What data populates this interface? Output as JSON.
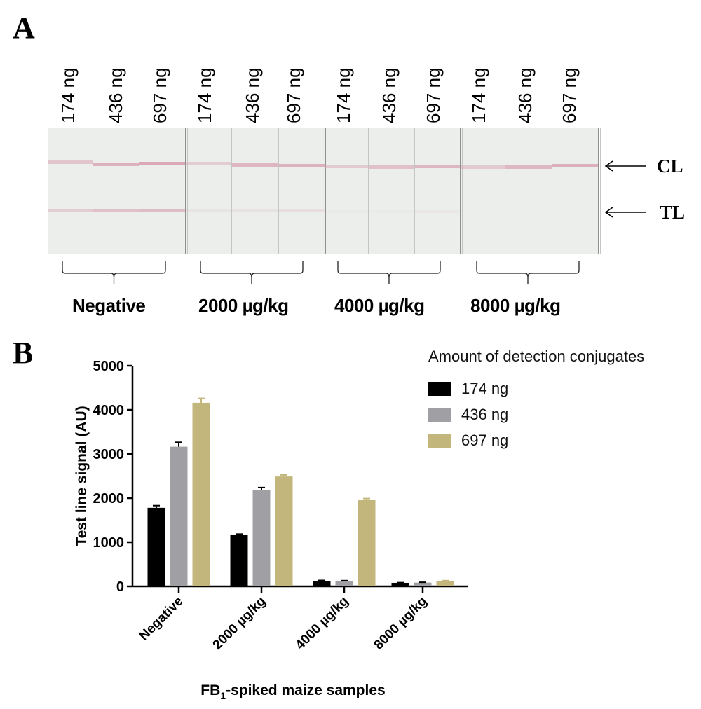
{
  "panel_a": {
    "letter": "A",
    "lane_labels": [
      "174 ng",
      "436 ng",
      "697 ng",
      "174 ng",
      "436 ng",
      "697 ng",
      "174 ng",
      "436 ng",
      "697 ng",
      "174 ng",
      "436 ng",
      "697 ng"
    ],
    "control_line_label": "CL",
    "test_line_label": "TL",
    "group_labels": [
      "Negative",
      "2000 µg/kg",
      "4000 µg/kg",
      "8000 µg/kg"
    ],
    "colors": {
      "strip_background": "#eceeec",
      "control_line": "#d9a3b4",
      "test_line": "#dcb0be"
    }
  },
  "panel_b": {
    "letter": "B"
  },
  "chart_data": {
    "type": "bar",
    "title": "",
    "xlabel": "FB1-spiked maize samples",
    "xlabel_main": "FB",
    "xlabel_sub": "1",
    "xlabel_rest": "-spiked maize samples",
    "ylabel": "Test line signal (AU)",
    "ylim": [
      0,
      5000
    ],
    "yticks": [
      0,
      1000,
      2000,
      3000,
      4000,
      5000
    ],
    "ytick_labels": [
      "0",
      "1000",
      "2000",
      "3000",
      "4000",
      "5000"
    ],
    "categories": [
      "Negative",
      "2000 µg/kg",
      "4000 µg/kg",
      "8000 µg/kg"
    ],
    "legend_title": "Amount of detection conjugates",
    "legend_position": "top-right",
    "grid": false,
    "series": [
      {
        "name": "174 ng",
        "color": "#000000",
        "values": [
          1780,
          1175,
          125,
          80
        ],
        "errors": [
          50,
          10,
          10,
          5
        ]
      },
      {
        "name": "436 ng",
        "color": "#a0a0a4",
        "values": [
          3165,
          2185,
          120,
          85
        ],
        "errors": [
          100,
          55,
          10,
          8
        ]
      },
      {
        "name": "697 ng",
        "color": "#c2b67c",
        "values": [
          4160,
          2490,
          1965,
          125
        ],
        "errors": [
          100,
          35,
          25,
          5
        ]
      }
    ]
  }
}
